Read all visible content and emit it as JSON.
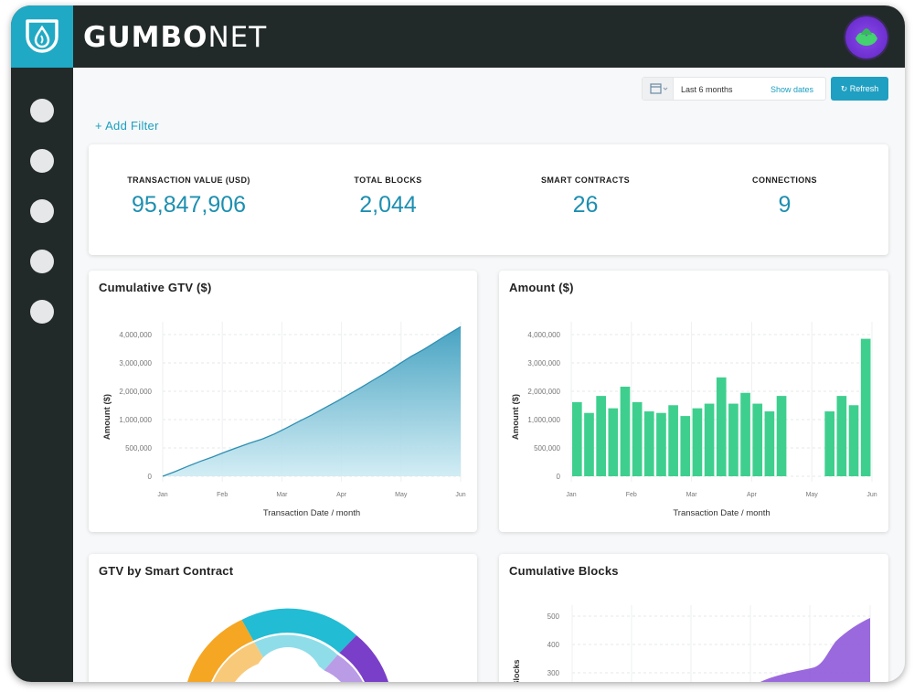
{
  "header": {
    "brand_bold": "GUMBO",
    "brand_light": "NET"
  },
  "toolbar": {
    "date_range": "Last 6 months",
    "show_dates": "Show dates",
    "refresh": "Refresh",
    "add_filter": "+ Add Filter"
  },
  "kpis": [
    {
      "label": "TRANSACTION VALUE (USD)",
      "value": "95,847,906"
    },
    {
      "label": "TOTAL BLOCKS",
      "value": "2,044"
    },
    {
      "label": "SMART CONTRACTS",
      "value": "26"
    },
    {
      "label": "CONNECTIONS",
      "value": "9"
    }
  ],
  "colors": {
    "accent": "#1f9fc1",
    "bar_green": "#3ecf8e",
    "dark": "#212a29",
    "purple": "#8a4fd8"
  },
  "chart_data": [
    {
      "type": "area",
      "title": "Cumulative GTV ($)",
      "xlabel": "Transaction Date / month",
      "ylabel": "Amount ($)",
      "x_ticks": [
        "Jan",
        "Feb",
        "Mar",
        "Apr",
        "May",
        "Jun"
      ],
      "y_ticks": [
        "0",
        "500,000",
        "1,000,000",
        "2,000,000",
        "3,000,000",
        "4,000,000"
      ],
      "ylim": [
        0,
        5
      ],
      "series": [
        {
          "values": [
            0,
            0.15,
            0.32,
            0.48,
            0.62,
            0.78,
            0.93,
            1.07,
            1.2,
            1.37,
            1.57,
            1.78,
            1.98,
            2.2,
            2.42,
            2.65,
            2.88,
            3.12,
            3.36,
            3.62,
            3.88,
            4.1,
            4.35,
            4.6,
            4.84
          ]
        }
      ]
    },
    {
      "type": "bar",
      "title": "Amount ($)",
      "xlabel": "Transaction Date / month",
      "ylabel": "Amount ($)",
      "x_ticks": [
        "Jan",
        "Feb",
        "Mar",
        "Apr",
        "May",
        "Jun"
      ],
      "y_ticks": [
        "0",
        "500,000",
        "1,000,000",
        "2,000,000",
        "3,000,000",
        "4,000,000"
      ],
      "ylim": [
        0,
        5
      ],
      "values": [
        2.4,
        2.05,
        2.6,
        2.2,
        2.9,
        2.4,
        2.1,
        2.05,
        2.3,
        1.95,
        2.2,
        2.35,
        3.2,
        2.35,
        2.7,
        2.35,
        2.1,
        2.6,
        0,
        0,
        0,
        2.1,
        2.6,
        2.3,
        4.45
      ]
    },
    {
      "type": "pie",
      "title": "GTV by Smart Contract",
      "slices": [
        {
          "color": "#f5a623"
        },
        {
          "color": "#22bcd4"
        },
        {
          "color": "#7a3fc9"
        }
      ]
    },
    {
      "type": "area",
      "title": "Cumulative Blocks",
      "ylabel": "Blocks",
      "y_ticks": [
        "300",
        "400",
        "500"
      ]
    }
  ]
}
